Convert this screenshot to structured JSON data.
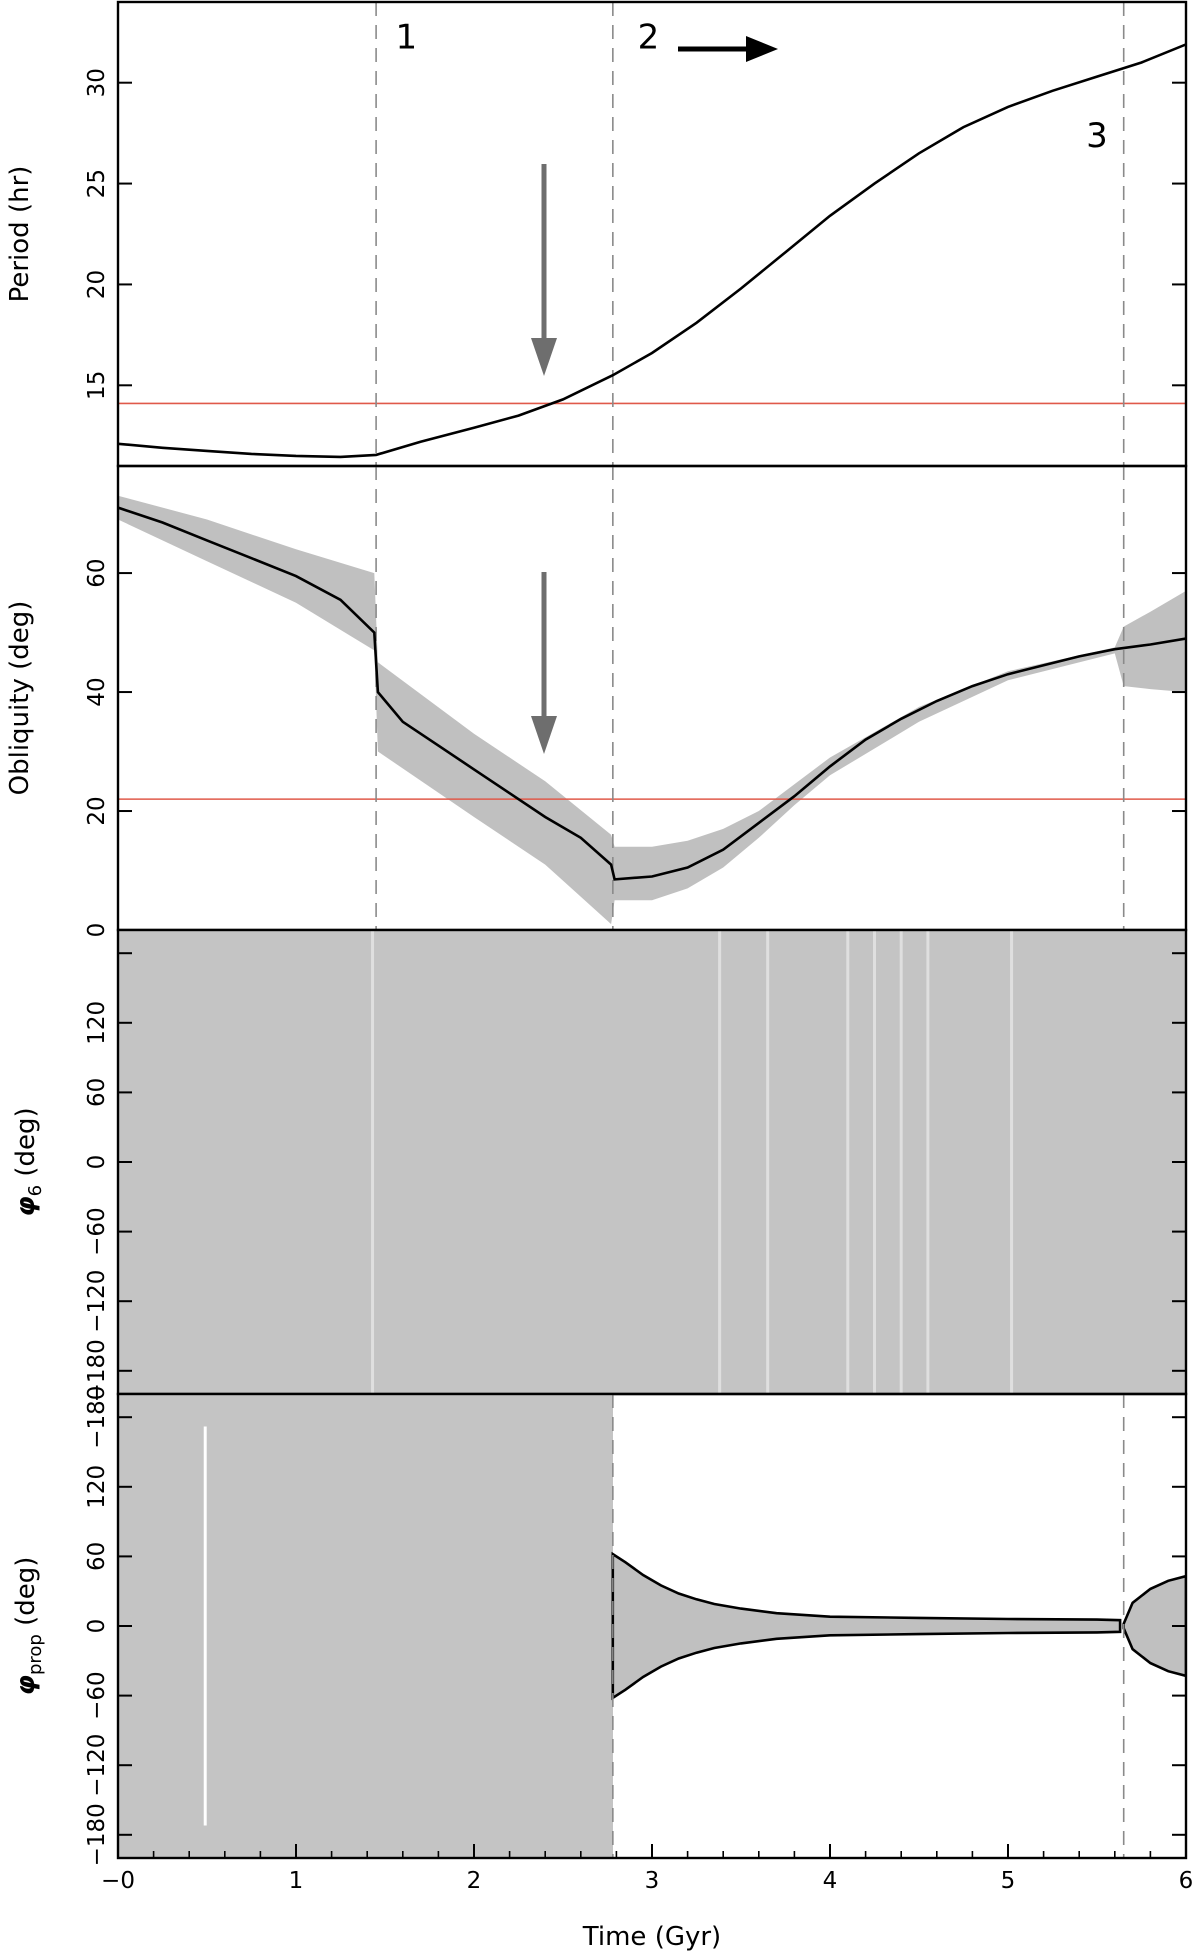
{
  "colors": {
    "curve": "#000000",
    "band": "#c0c0c0",
    "noise": "#bdbdbd",
    "reference_line": "#e05a4a",
    "divider": "#8a8a8a",
    "arrow_gray": "#6e6e6e",
    "arrow_black": "#000000"
  },
  "chart_data": [
    {
      "type": "line",
      "ylabel": "Period (hr)",
      "xlim": [
        0,
        6
      ],
      "ylim": [
        11,
        34
      ],
      "yticks": [
        15,
        20,
        25,
        30
      ],
      "reference_y": 14.1,
      "dividers_x": [
        1.45,
        2.78,
        5.65
      ],
      "region_labels": [
        {
          "text": "1",
          "x": 1.62,
          "y": 32.3
        },
        {
          "text": "2",
          "x": 2.98,
          "y": 32.3
        },
        {
          "text": "3",
          "x": 5.5,
          "y": 27.4
        }
      ],
      "series": [
        {
          "x": [
            0,
            0.25,
            0.5,
            0.75,
            1.0,
            1.25,
            1.45,
            1.7,
            2.0,
            2.25,
            2.5,
            2.78,
            3.0,
            3.25,
            3.5,
            3.75,
            4.0,
            4.25,
            4.5,
            4.75,
            5.0,
            5.25,
            5.5,
            5.75,
            6.0
          ],
          "y": [
            12.1,
            11.9,
            11.75,
            11.6,
            11.5,
            11.45,
            11.55,
            12.2,
            12.9,
            13.5,
            14.3,
            15.5,
            16.6,
            18.1,
            19.8,
            21.6,
            23.4,
            25.0,
            26.5,
            27.8,
            28.8,
            29.6,
            30.3,
            31.0,
            31.9
          ]
        }
      ]
    },
    {
      "type": "line",
      "ylabel": "Obliquity (deg)",
      "xlim": [
        0,
        6
      ],
      "ylim": [
        0,
        78
      ],
      "yticks": [
        0,
        20,
        40,
        60
      ],
      "reference_y": 22,
      "dividers_x": [
        1.45,
        2.78,
        5.65
      ],
      "series": [
        {
          "x": [
            0,
            0.25,
            0.5,
            0.75,
            1.0,
            1.25,
            1.44,
            1.46,
            1.6,
            1.8,
            2.0,
            2.2,
            2.4,
            2.6,
            2.77,
            2.79,
            3.0,
            3.2,
            3.4,
            3.6,
            3.8,
            4.0,
            4.2,
            4.4,
            4.6,
            4.8,
            5.0,
            5.2,
            5.4,
            5.6,
            5.8,
            6.0
          ],
          "y": [
            71,
            68.5,
            65.5,
            62.5,
            59.5,
            55.5,
            50,
            40,
            35,
            31,
            27,
            23,
            19,
            15.5,
            11,
            8.5,
            9,
            10.5,
            13.5,
            18,
            22.5,
            27.5,
            32,
            35.5,
            38.5,
            41,
            43,
            44.5,
            46,
            47.2,
            48,
            49
          ]
        },
        {
          "x": [
            0,
            0.5,
            1.0,
            1.44,
            1.46,
            2.0,
            2.4,
            2.77,
            2.79,
            3.0,
            3.2,
            3.4,
            3.6,
            3.8,
            4.0,
            4.5,
            5.0,
            5.6,
            5.65,
            5.8,
            6.0
          ],
          "upper": [
            73,
            69,
            64,
            60,
            45,
            33,
            25,
            16,
            14,
            14,
            15,
            17,
            20,
            24.5,
            29,
            37.5,
            43.5,
            47.5,
            51,
            53.5,
            57
          ],
          "lower": [
            69,
            62,
            55,
            47,
            30,
            19,
            11,
            1,
            5,
            5,
            7,
            10.5,
            15.5,
            21,
            26,
            35,
            42,
            46.5,
            41,
            40.5,
            40
          ]
        }
      ]
    },
    {
      "type": "scatter",
      "ylabel": "φ6  (deg)",
      "xlim": [
        0,
        6
      ],
      "ylim": [
        -200,
        200
      ],
      "yticks": [
        -180,
        -120,
        -60,
        0,
        60,
        120,
        180
      ],
      "yticklabels": [
        "−180",
        "−120",
        "−60",
        "0",
        "60",
        "120",
        ""
      ],
      "light_stripes_x": [
        1.43,
        3.38,
        3.65,
        4.1,
        4.25,
        4.4,
        4.55,
        5.02
      ]
    },
    {
      "type": "scatter",
      "ylabel": "φprop  (deg)",
      "xlim": [
        0,
        6
      ],
      "ylim": [
        -200,
        200
      ],
      "yticks": [
        -180,
        -120,
        -60,
        0,
        60,
        120,
        180
      ],
      "yticklabels": [
        "−180",
        "−120",
        "−60",
        "0",
        "60",
        "120",
        "−180"
      ],
      "xticks": [
        0,
        1,
        2,
        3,
        4,
        5,
        6
      ],
      "xticklabels": [
        "−0",
        "1",
        "2",
        "3",
        "4",
        "5",
        "6"
      ],
      "xlabel": "Time (Gyr)",
      "dividers_x": [
        2.78,
        5.65
      ],
      "white_stripe_x": 0.49,
      "series": [
        {
          "x": [
            2.78,
            2.85,
            2.95,
            3.05,
            3.15,
            3.25,
            3.35,
            3.5,
            3.7,
            4.0,
            4.5,
            5.0,
            5.5,
            5.63
          ],
          "upper": [
            62,
            55,
            44,
            35,
            28,
            23,
            19,
            15,
            11,
            8,
            7,
            6,
            5.5,
            5
          ],
          "lower": [
            -62,
            -55,
            -44,
            -35,
            -28,
            -23,
            -19,
            -15,
            -11,
            -8,
            -7,
            -6,
            -5.5,
            -5
          ]
        },
        {
          "x": [
            5.65,
            5.7,
            5.8,
            5.9,
            6.0
          ],
          "upper": [
            2,
            20,
            32,
            39,
            43
          ],
          "lower": [
            -2,
            -20,
            -32,
            -39,
            -43
          ]
        }
      ]
    }
  ]
}
